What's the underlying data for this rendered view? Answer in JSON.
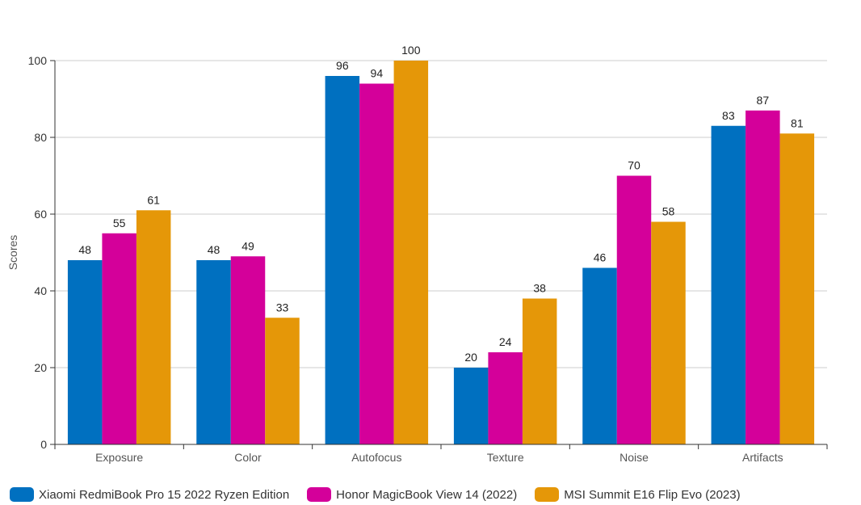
{
  "chart_data": {
    "type": "bar",
    "title": "",
    "xlabel": "",
    "ylabel": "Scores",
    "ylim": [
      0,
      100
    ],
    "yticks": [
      0,
      20,
      40,
      60,
      80,
      100
    ],
    "grid": true,
    "legend_position": "bottom-left",
    "categories": [
      "Exposure",
      "Color",
      "Autofocus",
      "Texture",
      "Noise",
      "Artifacts"
    ],
    "series": [
      {
        "name": "Xiaomi RedmiBook Pro 15 2022 Ryzen Edition",
        "color": "#0070c0",
        "values": [
          48,
          48,
          96,
          20,
          46,
          83
        ]
      },
      {
        "name": "Honor MagicBook View 14 (2022)",
        "color": "#d4009a",
        "values": [
          55,
          49,
          94,
          24,
          70,
          87
        ]
      },
      {
        "name": "MSI Summit E16 Flip Evo (2023)",
        "color": "#e59708",
        "values": [
          61,
          33,
          100,
          38,
          58,
          81
        ]
      }
    ]
  }
}
